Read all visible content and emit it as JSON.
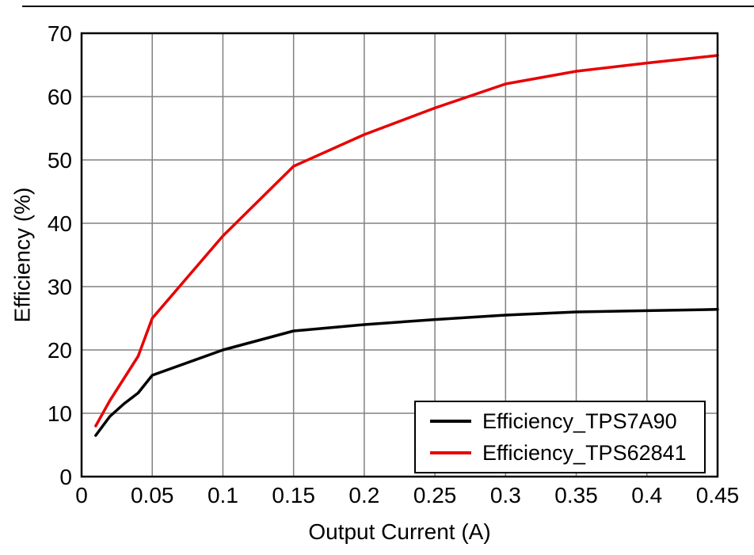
{
  "chart_data": {
    "type": "line",
    "title": "",
    "xlabel": "Output Current (A)",
    "ylabel": "Efficiency (%)",
    "xlim": [
      0,
      0.45
    ],
    "ylim": [
      0,
      70
    ],
    "xticks": [
      0,
      0.05,
      0.1,
      0.15,
      0.2,
      0.25,
      0.3,
      0.35,
      0.4,
      0.45
    ],
    "xtick_labels": [
      "0",
      "0.05",
      "0.1",
      "0.15",
      "0.2",
      "0.25",
      "0.3",
      "0.35",
      "0.4",
      "0.45"
    ],
    "yticks": [
      0,
      10,
      20,
      30,
      40,
      50,
      60,
      70
    ],
    "ytick_labels": [
      "0",
      "10",
      "20",
      "30",
      "40",
      "50",
      "60",
      "70"
    ],
    "grid": true,
    "grid_color": "#808080",
    "axis_color": "#000000",
    "background": "#ffffff",
    "legend_position": "bottom-right",
    "x": [
      0.01,
      0.02,
      0.03,
      0.04,
      0.05,
      0.1,
      0.15,
      0.2,
      0.25,
      0.3,
      0.35,
      0.4,
      0.45
    ],
    "series": [
      {
        "name": "Efficiency_TPS7A90",
        "color": "#000000",
        "values": [
          6.5,
          9.5,
          11.5,
          13.2,
          16,
          20,
          23,
          24,
          24.8,
          25.5,
          26,
          26.2,
          26.4
        ]
      },
      {
        "name": "Efficiency_TPS62841",
        "color": "#e80000",
        "values": [
          8,
          12,
          15.5,
          19,
          25,
          38,
          49,
          54,
          58.2,
          62,
          64,
          65.3,
          66.5
        ]
      }
    ]
  }
}
